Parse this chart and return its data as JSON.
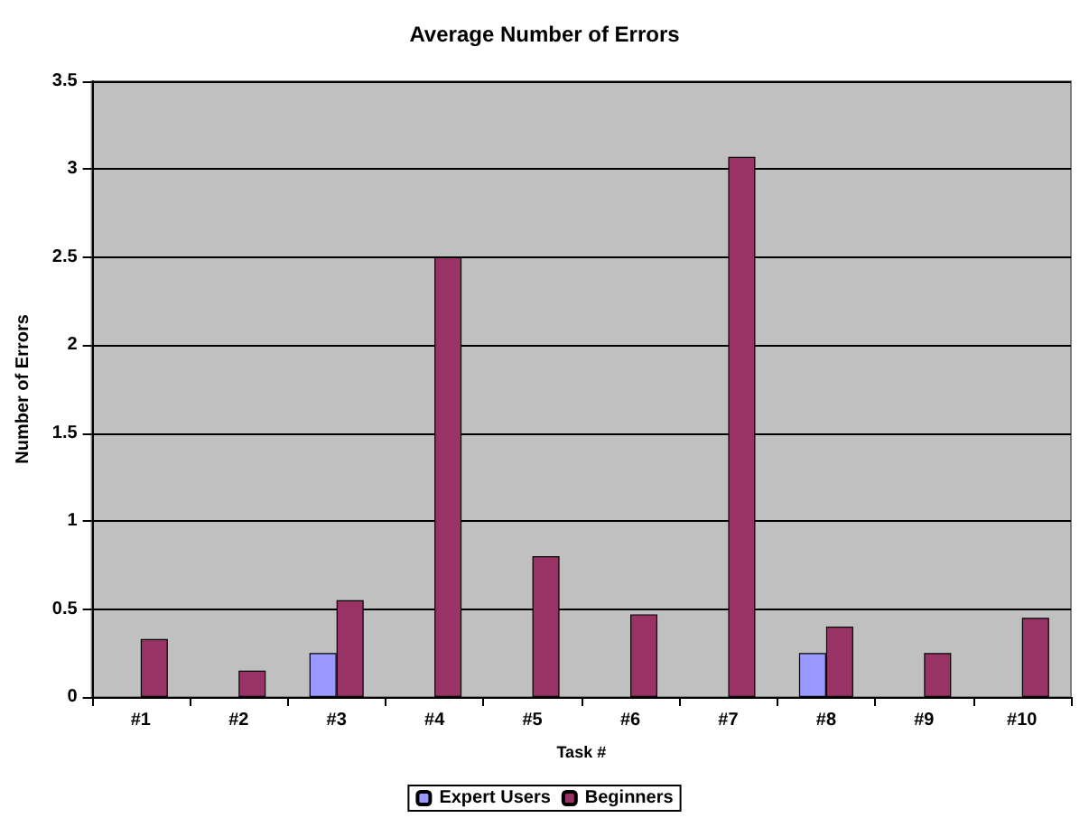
{
  "chart_data": {
    "type": "bar",
    "title": "Average Number of Errors",
    "xlabel": "Task #",
    "ylabel": "Number of Errors",
    "categories": [
      "#1",
      "#2",
      "#3",
      "#4",
      "#5",
      "#6",
      "#7",
      "#8",
      "#9",
      "#10"
    ],
    "series": [
      {
        "name": "Expert Users",
        "color": "#9999ff",
        "values": [
          0,
          0,
          0.25,
          0,
          0,
          0,
          0,
          0.25,
          0,
          0
        ]
      },
      {
        "name": "Beginners",
        "color": "#993366",
        "values": [
          0.33,
          0.15,
          0.55,
          2.5,
          0.8,
          0.47,
          3.07,
          0.4,
          0.25,
          0.45
        ]
      }
    ],
    "ylim": [
      0,
      3.5
    ],
    "yticks": [
      0,
      0.5,
      1,
      1.5,
      2,
      2.5,
      3,
      3.5
    ],
    "grid": "y",
    "legend": "bottom"
  }
}
